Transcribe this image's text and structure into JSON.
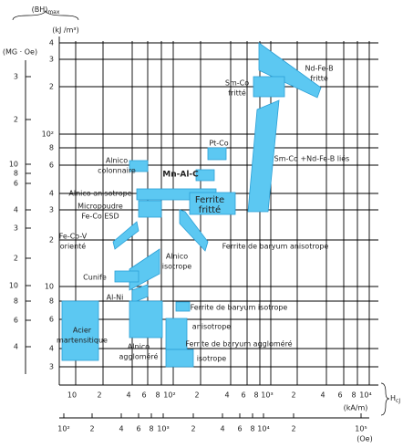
{
  "axes": {
    "bh_title": "(BH)",
    "bh_sub": "max",
    "kj_unit": "(kJ /m³)",
    "mgoe_unit": "(MG · Oe)",
    "h_title": "H",
    "h_sub": "cJ",
    "kam_unit": "(kA/m)",
    "oe_unit": "(Oe)",
    "kj_ticks": [
      "4",
      "3",
      "2",
      "10²",
      "8",
      "6",
      "4",
      "3",
      "2",
      "10",
      "8",
      "6",
      "4",
      "3"
    ],
    "mgoe_ticks": [
      "3",
      "2",
      "10",
      "8",
      "6",
      "4",
      "3",
      "2",
      "10",
      "8",
      "6",
      "4"
    ],
    "kam_ticks": [
      "10",
      "2",
      "4",
      "6",
      "8",
      "10²",
      "2",
      "4",
      "6",
      "8",
      "10³",
      "2",
      "4",
      "6",
      "8",
      "10⁴"
    ],
    "oe_ticks": [
      "10²",
      "2",
      "4",
      "6",
      "8",
      "10³",
      "2",
      "4",
      "6",
      "8",
      "10⁴",
      "2",
      "10⁵"
    ]
  },
  "regions": [
    {
      "lines": [
        "Nd-Fe-B",
        "fritté"
      ]
    },
    {
      "lines": [
        "Sm-Co",
        "fritté"
      ]
    },
    {
      "lines": [
        "Sm-Co +Nd-Fe-B liés"
      ]
    },
    {
      "lines": [
        "Pt-Co"
      ]
    },
    {
      "lines": [
        "Alnico",
        "colonnaire"
      ]
    },
    {
      "lines": [
        "Mn-Al-C"
      ]
    },
    {
      "lines": [
        "Alnico anisotrope"
      ]
    },
    {
      "lines": [
        "Ferrite",
        "fritté"
      ]
    },
    {
      "lines": [
        "Micropoudre",
        "Fe-Co ESD"
      ]
    },
    {
      "lines": [
        "Fe-Co-V",
        "orienté"
      ]
    },
    {
      "lines": [
        "Ferrite de baryum anisotrope"
      ]
    },
    {
      "lines": [
        "Alnico",
        "isotrope"
      ]
    },
    {
      "lines": [
        "Cunife"
      ]
    },
    {
      "lines": [
        "Al-Ni"
      ]
    },
    {
      "lines": [
        "Ferrite de baryum isotrope"
      ]
    },
    {
      "lines": [
        "anisotrope"
      ]
    },
    {
      "lines": [
        "Ferrite de baryum aggloméré"
      ]
    },
    {
      "lines": [
        "Acier",
        "martensitique"
      ]
    },
    {
      "lines": [
        "Alnico",
        "aggloméré"
      ]
    },
    {
      "lines": [
        "isotrope"
      ]
    }
  ]
}
